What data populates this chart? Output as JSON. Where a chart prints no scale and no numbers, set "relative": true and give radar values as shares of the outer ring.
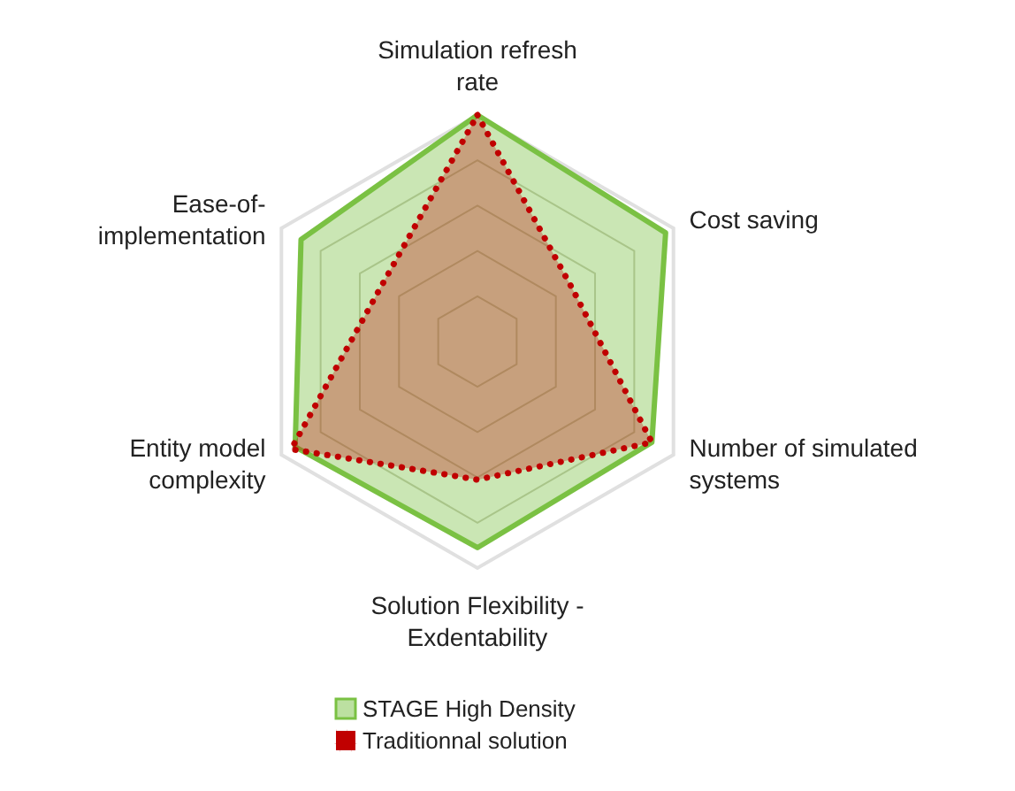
{
  "chart_data": {
    "type": "radar",
    "relative": true,
    "grid": true,
    "legend": "bottom",
    "categories": [
      "Simulation refresh rate",
      "Cost saving",
      "Number of simulated systems",
      "Solution Flexibility - Exdentability",
      "Entity model complexity",
      "Ease-of-implementation"
    ],
    "series": [
      {
        "name": "STAGE High Density",
        "color": "#7ac143",
        "values": [
          1,
          0.96,
          0.89,
          0.91,
          0.93,
          0.9
        ]
      },
      {
        "name": "Traditionnal solution",
        "color": "#c00000",
        "line_style": "dotted",
        "values": [
          1,
          0.48,
          0.89,
          0.61,
          0.95,
          0.49
        ]
      }
    ]
  }
}
